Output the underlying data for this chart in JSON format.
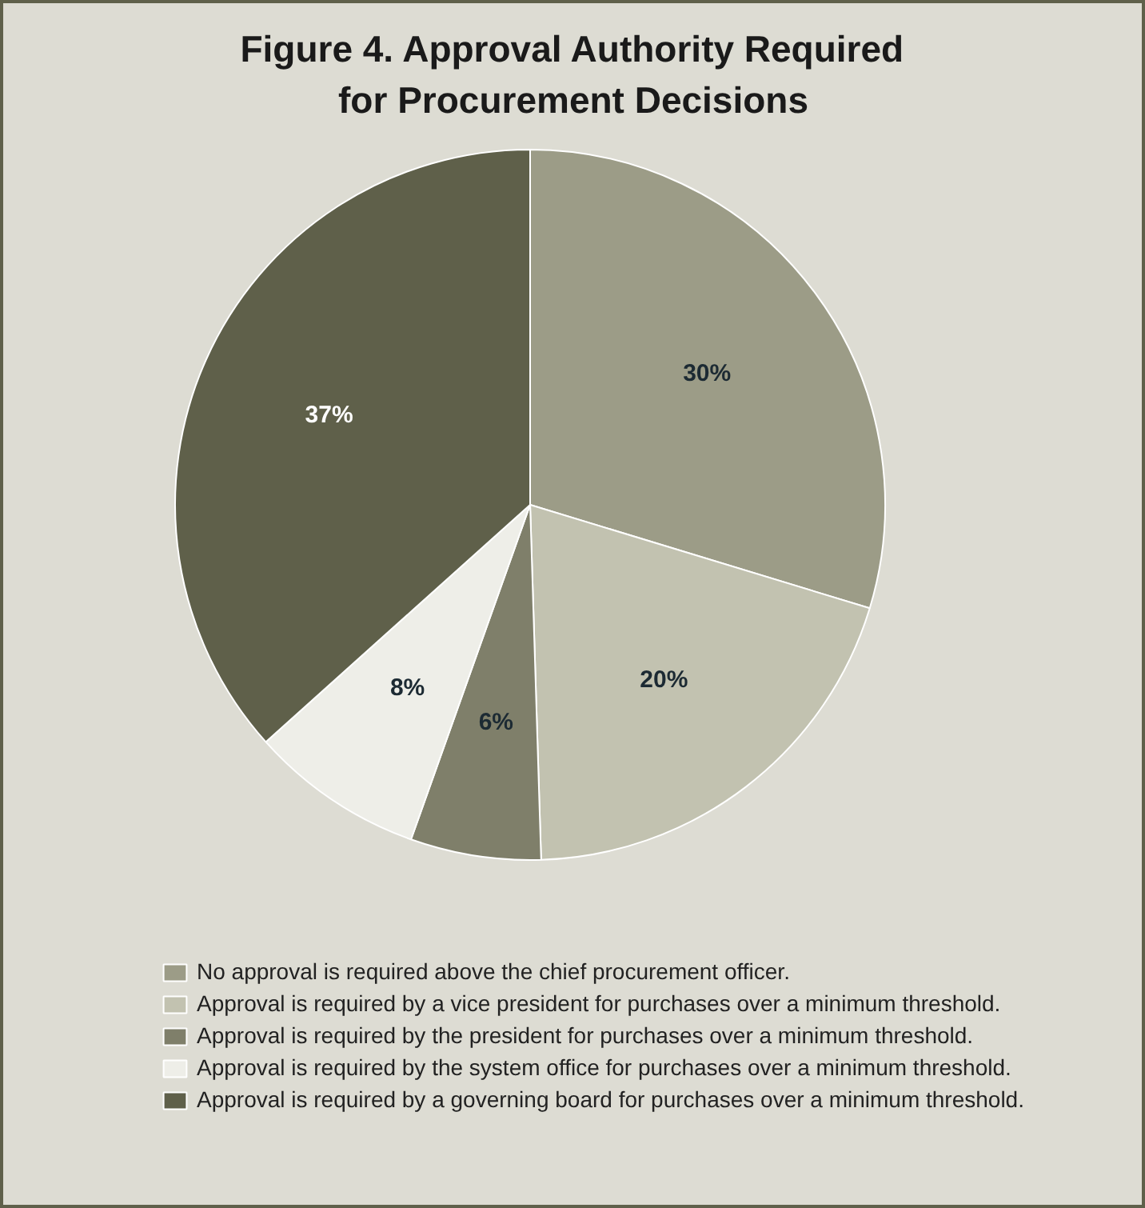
{
  "chart_data": {
    "type": "pie",
    "title": "Figure 4. Approval Authority Required for Procurement Decisions",
    "categories": [
      "No approval is required above the chief procurement officer.",
      "Approval is required by a vice president for purchases over a minimum threshold.",
      "Approval is required by the president for purchases over a minimum threshold.",
      "Approval is required by the system office for purchases over a minimum threshold.",
      "Approval is required by a governing board for purchases over a minimum threshold."
    ],
    "values": [
      30,
      20,
      6,
      8,
      37
    ],
    "colors": [
      "#9c9c87",
      "#c2c2b0",
      "#7f7f6a",
      "#eeeee8",
      "#5f604a"
    ],
    "value_labels": [
      "30%",
      "20%",
      "6%",
      "8%",
      "37%"
    ],
    "legend": "bottom"
  }
}
